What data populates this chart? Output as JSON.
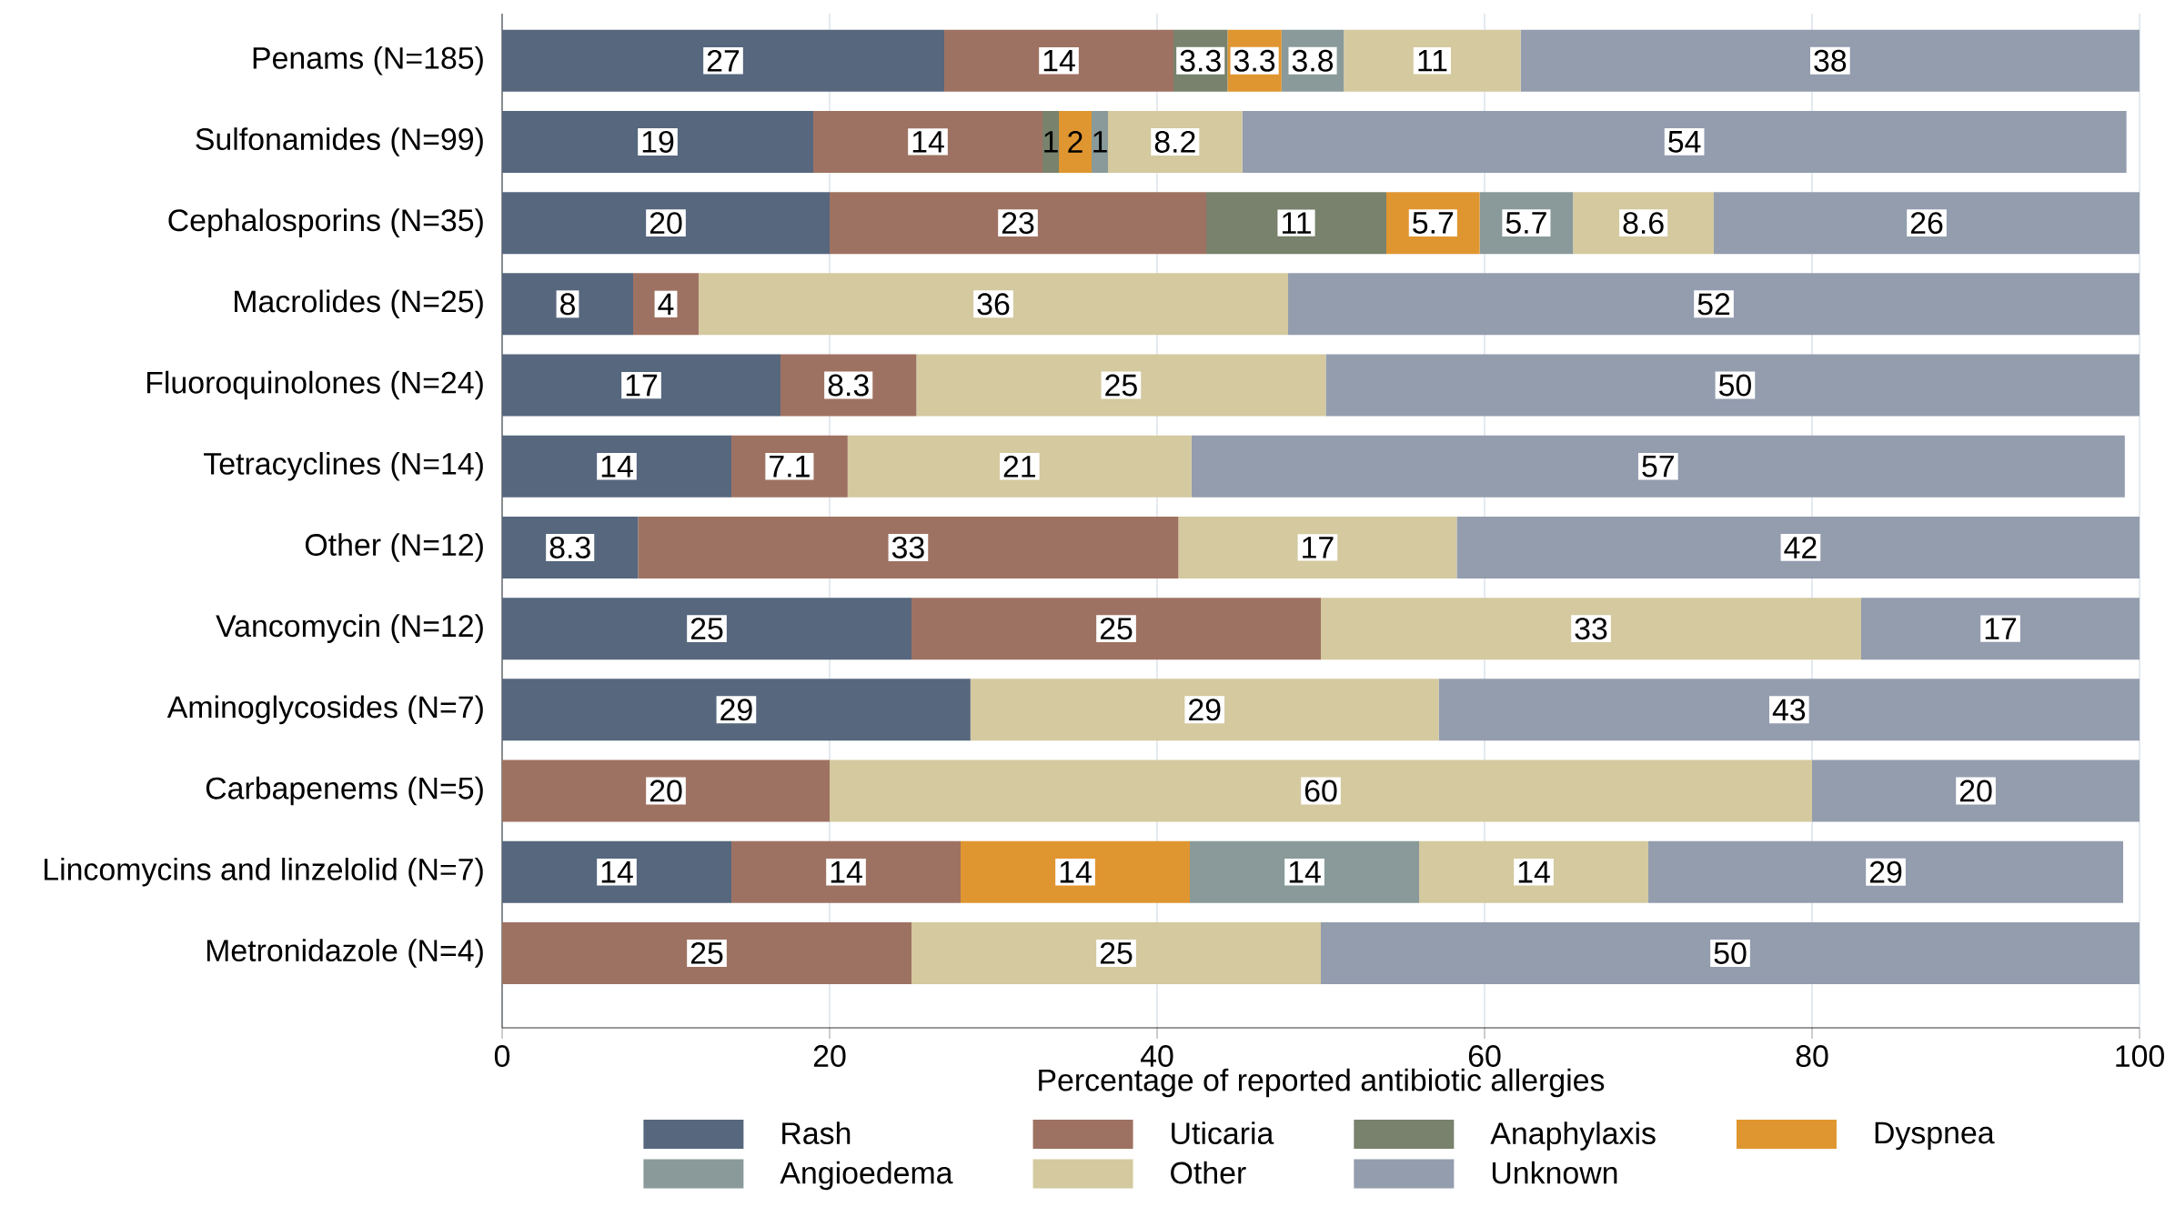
{
  "chart_data": {
    "type": "bar",
    "orientation": "horizontal",
    "stacked": true,
    "categories": [
      "Penams (N=185)",
      "Sulfonamides (N=99)",
      "Cephalosporins (N=35)",
      "Macrolides (N=25)",
      "Fluoroquinolones (N=24)",
      "Tetracyclines (N=14)",
      "Other (N=12)",
      "Vancomycin (N=12)",
      "Aminoglycosides (N=7)",
      "Carbapenems (N=5)",
      "Lincomycins and linzelolid (N=7)",
      "Metronidazole (N=4)"
    ],
    "series": [
      {
        "name": "Rash",
        "color": "#56677e",
        "values": [
          27,
          19,
          20,
          8,
          17,
          14,
          8.3,
          25,
          28.6,
          null,
          14,
          null
        ],
        "value_labels": [
          "27",
          "19",
          "20",
          "8",
          "17",
          "14",
          "8.3",
          "25",
          "29",
          null,
          "14",
          null
        ]
      },
      {
        "name": "Uticaria",
        "color": "#9e7262",
        "values": [
          14,
          14,
          23,
          4,
          8.3,
          7.1,
          33,
          25,
          null,
          20,
          14,
          25
        ],
        "value_labels": [
          "14",
          "14",
          "23",
          "4",
          "8.3",
          "7.1",
          "33",
          "25",
          null,
          "20",
          "14",
          "25"
        ]
      },
      {
        "name": "Anaphylaxis",
        "color": "#78826c",
        "values": [
          3.3,
          1,
          11,
          null,
          null,
          null,
          null,
          null,
          null,
          null,
          null,
          null
        ],
        "value_labels": [
          "3.3",
          "1",
          "11",
          null,
          null,
          null,
          null,
          null,
          null,
          null,
          null,
          null
        ]
      },
      {
        "name": "Dyspnea",
        "color": "#e09630",
        "values": [
          3.3,
          2,
          5.7,
          null,
          null,
          null,
          null,
          null,
          null,
          null,
          14,
          null
        ],
        "value_labels": [
          "3.3",
          "2",
          "5.7",
          null,
          null,
          null,
          null,
          null,
          null,
          null,
          "14",
          null
        ]
      },
      {
        "name": "Angioedema",
        "color": "#8a9a9a",
        "values": [
          3.8,
          1,
          5.7,
          null,
          null,
          null,
          null,
          null,
          null,
          null,
          14,
          null
        ],
        "value_labels": [
          "3.8",
          "1",
          "5.7",
          null,
          null,
          null,
          null,
          null,
          null,
          null,
          "14",
          null
        ]
      },
      {
        "name": "Other",
        "color": "#d4c99f",
        "values": [
          10.8,
          8.2,
          8.6,
          36,
          25,
          21,
          17,
          33,
          28.6,
          60,
          14,
          25
        ],
        "value_labels": [
          "11",
          "8.2",
          "8.6",
          "36",
          "25",
          "21",
          "17",
          "33",
          "29",
          "60",
          "14",
          "25"
        ]
      },
      {
        "name": "Unknown",
        "color": "#939dae",
        "values": [
          37.8,
          54,
          26,
          52,
          50,
          57,
          42,
          17,
          42.8,
          20,
          29,
          50
        ],
        "value_labels": [
          "38",
          "54",
          "26",
          "52",
          "50",
          "57",
          "42",
          "17",
          "43",
          "20",
          "29",
          "50"
        ]
      }
    ],
    "xlim": [
      0,
      100
    ],
    "xticks": [
      0,
      20,
      40,
      60,
      80,
      100
    ],
    "xlabel": "Percentage of reported antibiotic allergies",
    "grid": "x",
    "legend": "bottom"
  }
}
